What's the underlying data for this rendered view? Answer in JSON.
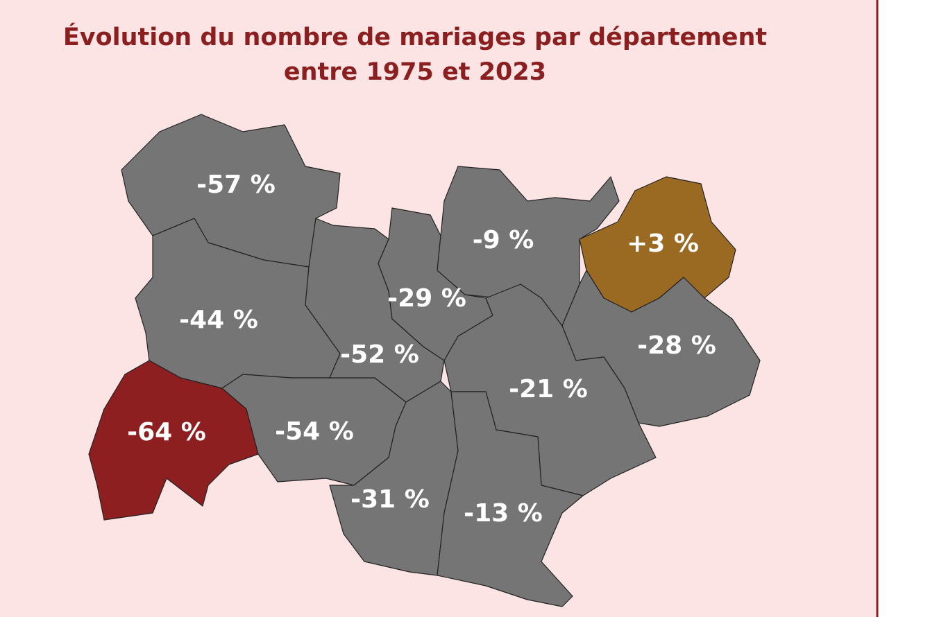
{
  "title": [
    "Évolution du nombre de mariages par département",
    "entre 1975 et 2023"
  ],
  "regions": [
    {
      "value": -57,
      "label": "-57 %",
      "color": "#757575"
    },
    {
      "value": -44,
      "label": "-44 %",
      "color": "#757575"
    },
    {
      "value": -64,
      "label": "-64 %",
      "color": "#8e1f20"
    },
    {
      "value": -54,
      "label": "-54 %",
      "color": "#757575"
    },
    {
      "value": -52,
      "label": "-52 %",
      "color": "#757575"
    },
    {
      "value": -29,
      "label": "-29 %",
      "color": "#757575"
    },
    {
      "value": -9,
      "label": "-9 %",
      "color": "#757575"
    },
    {
      "value": 3,
      "label": "+3 %",
      "color": "#9a6a22"
    },
    {
      "value": -28,
      "label": "-28 %",
      "color": "#757575"
    },
    {
      "value": -21,
      "label": "-21 %",
      "color": "#757575"
    },
    {
      "value": -31,
      "label": "-31 %",
      "color": "#757575"
    },
    {
      "value": -13,
      "label": "-13 %",
      "color": "#757575"
    }
  ]
}
